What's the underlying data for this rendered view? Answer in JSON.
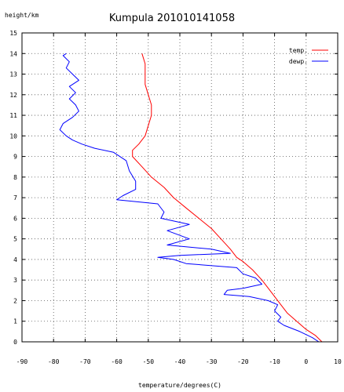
{
  "chart_data": {
    "type": "line",
    "title": "Kumpula 201010141058",
    "ylabel": "height/km",
    "xlabel": "temperature/degrees(C)",
    "xlim": [
      -90,
      10
    ],
    "ylim": [
      0,
      15
    ],
    "xticks": [
      -90,
      -80,
      -70,
      -60,
      -50,
      -40,
      -30,
      -20,
      -10,
      0,
      10
    ],
    "yticks": [
      0,
      1,
      2,
      3,
      4,
      5,
      6,
      7,
      8,
      9,
      10,
      11,
      12,
      13,
      14,
      15
    ],
    "grid": true,
    "legend_position": "top-right",
    "series": [
      {
        "name": "temp.",
        "color": "#ff0000",
        "points": [
          [
            5,
            0
          ],
          [
            3,
            0.3
          ],
          [
            0,
            0.6
          ],
          [
            -3,
            1.0
          ],
          [
            -6,
            1.4
          ],
          [
            -8,
            1.8
          ],
          [
            -10,
            2.2
          ],
          [
            -12,
            2.6
          ],
          [
            -14,
            3.0
          ],
          [
            -17,
            3.5
          ],
          [
            -20,
            3.9
          ],
          [
            -22,
            4.1
          ],
          [
            -24,
            4.5
          ],
          [
            -27,
            5.0
          ],
          [
            -30,
            5.5
          ],
          [
            -34,
            6.0
          ],
          [
            -38,
            6.5
          ],
          [
            -42,
            7.0
          ],
          [
            -45,
            7.5
          ],
          [
            -49,
            8.0
          ],
          [
            -52,
            8.5
          ],
          [
            -55,
            9.0
          ],
          [
            -55,
            9.3
          ],
          [
            -53,
            9.6
          ],
          [
            -51,
            10.0
          ],
          [
            -50,
            10.5
          ],
          [
            -49,
            11.0
          ],
          [
            -49,
            11.5
          ],
          [
            -50,
            12.0
          ],
          [
            -51,
            12.5
          ],
          [
            -51,
            13.0
          ],
          [
            -51,
            13.5
          ],
          [
            -52,
            14.0
          ]
        ]
      },
      {
        "name": "dewp.",
        "color": "#0000ff",
        "points": [
          [
            4,
            0
          ],
          [
            2,
            0.2
          ],
          [
            -2,
            0.5
          ],
          [
            -7,
            0.8
          ],
          [
            -9,
            1.0
          ],
          [
            -8,
            1.2
          ],
          [
            -10,
            1.5
          ],
          [
            -9,
            1.8
          ],
          [
            -12,
            2.0
          ],
          [
            -18,
            2.2
          ],
          [
            -26,
            2.3
          ],
          [
            -25,
            2.5
          ],
          [
            -20,
            2.6
          ],
          [
            -14,
            2.8
          ],
          [
            -16,
            3.1
          ],
          [
            -20,
            3.3
          ],
          [
            -22,
            3.6
          ],
          [
            -38,
            3.8
          ],
          [
            -42,
            4.0
          ],
          [
            -47,
            4.1
          ],
          [
            -40,
            4.2
          ],
          [
            -24,
            4.3
          ],
          [
            -30,
            4.5
          ],
          [
            -44,
            4.7
          ],
          [
            -37,
            5.0
          ],
          [
            -44,
            5.4
          ],
          [
            -37,
            5.7
          ],
          [
            -46,
            6.0
          ],
          [
            -45,
            6.3
          ],
          [
            -47,
            6.7
          ],
          [
            -60,
            6.9
          ],
          [
            -58,
            7.1
          ],
          [
            -54,
            7.4
          ],
          [
            -54,
            7.8
          ],
          [
            -56,
            8.3
          ],
          [
            -57,
            8.8
          ],
          [
            -61,
            9.2
          ],
          [
            -67,
            9.4
          ],
          [
            -71,
            9.6
          ],
          [
            -74,
            9.8
          ],
          [
            -76,
            10.0
          ],
          [
            -78,
            10.3
          ],
          [
            -77,
            10.6
          ],
          [
            -74,
            10.9
          ],
          [
            -72,
            11.2
          ],
          [
            -73,
            11.5
          ],
          [
            -75,
            11.8
          ],
          [
            -73,
            12.1
          ],
          [
            -75,
            12.4
          ],
          [
            -72,
            12.7
          ],
          [
            -74,
            13.0
          ],
          [
            -76,
            13.3
          ],
          [
            -75,
            13.6
          ],
          [
            -77,
            13.9
          ],
          [
            -76,
            14.0
          ]
        ]
      }
    ]
  }
}
